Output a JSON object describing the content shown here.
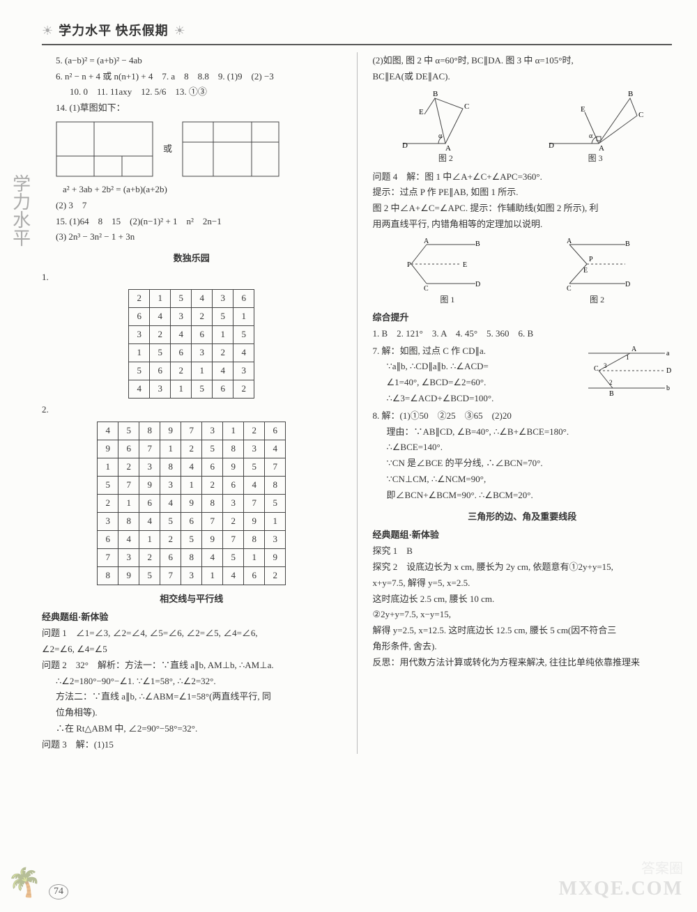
{
  "header": {
    "title": "学力水平 快乐假期"
  },
  "left": {
    "l5": "5. (a−b)² = (a+b)² − 4ab",
    "l6": "6. n² − n + 4 或 n(n+1) + 4　7. a　8　8.8　9. (1)9　(2) −3",
    "l10": "10. 0　11. 11axy　12. 5/6　13. ①③",
    "l14": "14. (1)草图如下：",
    "or": "或",
    "formula": "a² + 3ab + 2b² = (a+b)(a+2b)",
    "l14_2": "(2) 3　7",
    "l15": "15. (1)64　8　15　(2)(n−1)² + 1　n²　2n−1",
    "l15_3": "(3) 2n³ − 3n² − 1 + 3n",
    "sudoku_title": "数独乐园",
    "n1": "1.",
    "n2": "2.",
    "sudoku1": [
      [
        2,
        1,
        5,
        4,
        3,
        6
      ],
      [
        6,
        4,
        3,
        2,
        5,
        1
      ],
      [
        3,
        2,
        4,
        6,
        1,
        5
      ],
      [
        1,
        5,
        6,
        3,
        2,
        4
      ],
      [
        5,
        6,
        2,
        1,
        4,
        3
      ],
      [
        4,
        3,
        1,
        5,
        6,
        2
      ]
    ],
    "sudoku2": [
      [
        4,
        5,
        8,
        9,
        7,
        3,
        1,
        2,
        6
      ],
      [
        9,
        6,
        7,
        1,
        2,
        5,
        8,
        3,
        4
      ],
      [
        1,
        2,
        3,
        8,
        4,
        6,
        9,
        5,
        7
      ],
      [
        5,
        7,
        9,
        3,
        1,
        2,
        6,
        4,
        8
      ],
      [
        2,
        1,
        6,
        4,
        9,
        8,
        3,
        7,
        5
      ],
      [
        3,
        8,
        4,
        5,
        6,
        7,
        2,
        9,
        1
      ],
      [
        6,
        4,
        1,
        2,
        5,
        9,
        7,
        8,
        3
      ],
      [
        7,
        3,
        2,
        6,
        8,
        4,
        5,
        1,
        9
      ],
      [
        8,
        9,
        5,
        7,
        3,
        1,
        4,
        6,
        2
      ]
    ],
    "section2": "相交线与平行线",
    "jingdian": "经典题组·新体验",
    "q1": "问题 1　∠1=∠3, ∠2=∠4, ∠5=∠6, ∠2=∠5, ∠4=∠6,",
    "q1b": "∠2=∠6, ∠4=∠5",
    "q2": "问题 2　32°　解析：方法一：∵直线 a∥b, AM⊥b, ∴AM⊥a.",
    "q2b": "∴∠2=180°−90°−∠1. ∵∠1=58°, ∴∠2=32°.",
    "q2c": "方法二：∵直线 a∥b, ∴∠ABM=∠1=58°(两直线平行, 同",
    "q2d": "位角相等).",
    "q2e": "∴在 Rt△ABM 中, ∠2=90°−58°=32°.",
    "q3": "问题 3　解：(1)15"
  },
  "right": {
    "r1": "(2)如图, 图 2 中 α=60°时, BC∥DA. 图 3 中 α=105°时,",
    "r1b": "BC∥EA(或 DE∥AC).",
    "fig2": "图 2",
    "fig3": "图 3",
    "q4": "问题 4　解：图 1 中∠A+∠C+∠APC=360°.",
    "q4b": "提示：过点 P 作 PE∥AB, 如图 1 所示.",
    "q4c": "图 2 中∠A+∠C=∠APC. 提示：作辅助线(如图 2 所示), 利",
    "q4d": "用两直线平行, 内错角相等的定理加以说明.",
    "fig1b": "图 1",
    "fig2b": "图 2",
    "zonghe": "综合提升",
    "z1": "1. B　2. 121°　3. A　4. 45°　5. 360　6. B",
    "z7": "7. 解：如图, 过点 C 作 CD∥a.",
    "z7b": "∵a∥b, ∴CD∥a∥b. ∴∠ACD=",
    "z7c": "∠1=40°, ∠BCD=∠2=60°.",
    "z7d": "∴∠3=∠ACD+∠BCD=100°.",
    "z8": "8. 解：(1)①50　②25　③65　(2)20",
    "z8b": "理由：∵AB∥CD, ∠B=40°, ∴∠B+∠BCE=180°.",
    "z8c": "∴∠BCE=140°.",
    "z8d": "∵CN 是∠BCE 的平分线, ∴∠BCN=70°.",
    "z8e": "∵CN⊥CM, ∴∠NCM=90°,",
    "z8f": "即∠BCN+∠BCM=90°. ∴∠BCM=20°.",
    "section3": "三角形的边、角及重要线段",
    "jingdian2": "经典题组·新体验",
    "t1": "探究 1　B",
    "t2": "探究 2　设底边长为 x cm, 腰长为 2y cm, 依题意有①2y+y=15,",
    "t2b": "x+y=7.5, 解得 y=5, x=2.5.",
    "t2c": "这时底边长 2.5 cm, 腰长 10 cm.",
    "t2d": "②2y+y=7.5, x−y=15,",
    "t2e": "解得 y=2.5, x=12.5. 这时底边长 12.5 cm, 腰长 5 cm(因不符合三",
    "t2f": "角形条件, 舍去).",
    "t2g": "反思：用代数方法计算或转化为方程来解决, 往往比单纯依靠推理来"
  },
  "pagenum": "74",
  "watermark": "MXQE.COM",
  "watermark2": "答案圈"
}
